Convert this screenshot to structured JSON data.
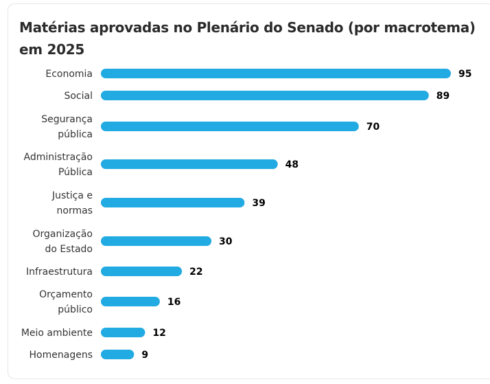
{
  "chart_data": {
    "type": "bar",
    "orientation": "horizontal",
    "title": "Matérias aprovadas no Plenário do Senado (por macrotema) em 2025",
    "xlabel": "",
    "ylabel": "",
    "grid": false,
    "legend": "none",
    "bar_color": "#22aae2",
    "categories": [
      [
        "Economia"
      ],
      [
        "Social"
      ],
      [
        "Segurança",
        "pública"
      ],
      [
        "Administração",
        "Pública"
      ],
      [
        "Justiça e",
        "normas"
      ],
      [
        "Organização",
        "do Estado"
      ],
      [
        "Infraestrutura"
      ],
      [
        "Orçamento",
        "público"
      ],
      [
        "Meio ambiente"
      ],
      [
        "Homenagens"
      ]
    ],
    "values": [
      95,
      89,
      70,
      48,
      39,
      30,
      22,
      16,
      12,
      9
    ],
    "xlim": [
      0,
      95
    ]
  }
}
